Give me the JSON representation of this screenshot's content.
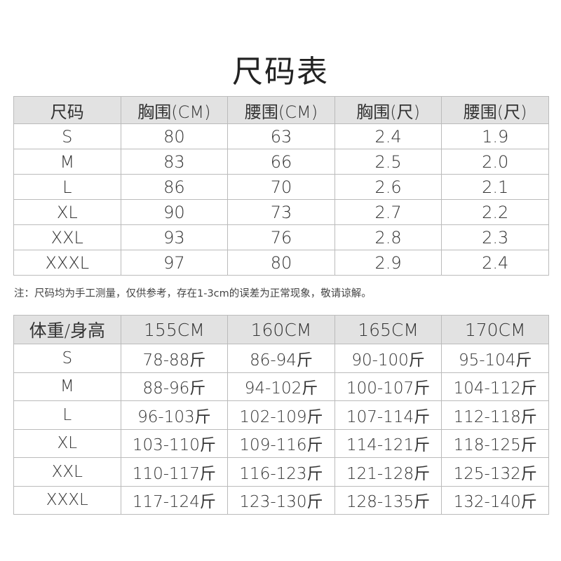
{
  "title": "尺码表",
  "table1": {
    "headers": [
      "尺码",
      "胸围(CM)",
      "腰围(CM)",
      "胸围(尺)",
      "腰围(尺)"
    ],
    "rows": [
      [
        "S",
        "80",
        "63",
        "2.4",
        "1.9"
      ],
      [
        "M",
        "83",
        "66",
        "2.5",
        "2.0"
      ],
      [
        "L",
        "86",
        "70",
        "2.6",
        "2.1"
      ],
      [
        "XL",
        "90",
        "73",
        "2.7",
        "2.2"
      ],
      [
        "XXL",
        "93",
        "76",
        "2.8",
        "2.3"
      ],
      [
        "XXXL",
        "97",
        "80",
        "2.9",
        "2.4"
      ]
    ]
  },
  "note": "注：尺码均为手工测量，仅供参考，存在1-3cm的误差为正常现象，敬请谅解。",
  "table2": {
    "headers": [
      "体重/身高",
      "155CM",
      "160CM",
      "165CM",
      "170CM"
    ],
    "rows": [
      [
        "S",
        "78-88斤",
        "86-94斤",
        "90-100斤",
        "95-104斤"
      ],
      [
        "M",
        "88-96斤",
        "94-102斤",
        "100-107斤",
        "104-112斤"
      ],
      [
        "L",
        "96-103斤",
        "102-109斤",
        "107-114斤",
        "112-118斤"
      ],
      [
        "XL",
        "103-110斤",
        "109-116斤",
        "114-121斤",
        "118-125斤"
      ],
      [
        "XXL",
        "110-117斤",
        "116-123斤",
        "121-128斤",
        "125-132斤"
      ],
      [
        "XXXL",
        "117-124斤",
        "123-130斤",
        "128-135斤",
        "132-140斤"
      ]
    ]
  },
  "colors": {
    "header_bg": "#e2e2e2",
    "border": "#bbbbbb",
    "text": "#333333"
  }
}
